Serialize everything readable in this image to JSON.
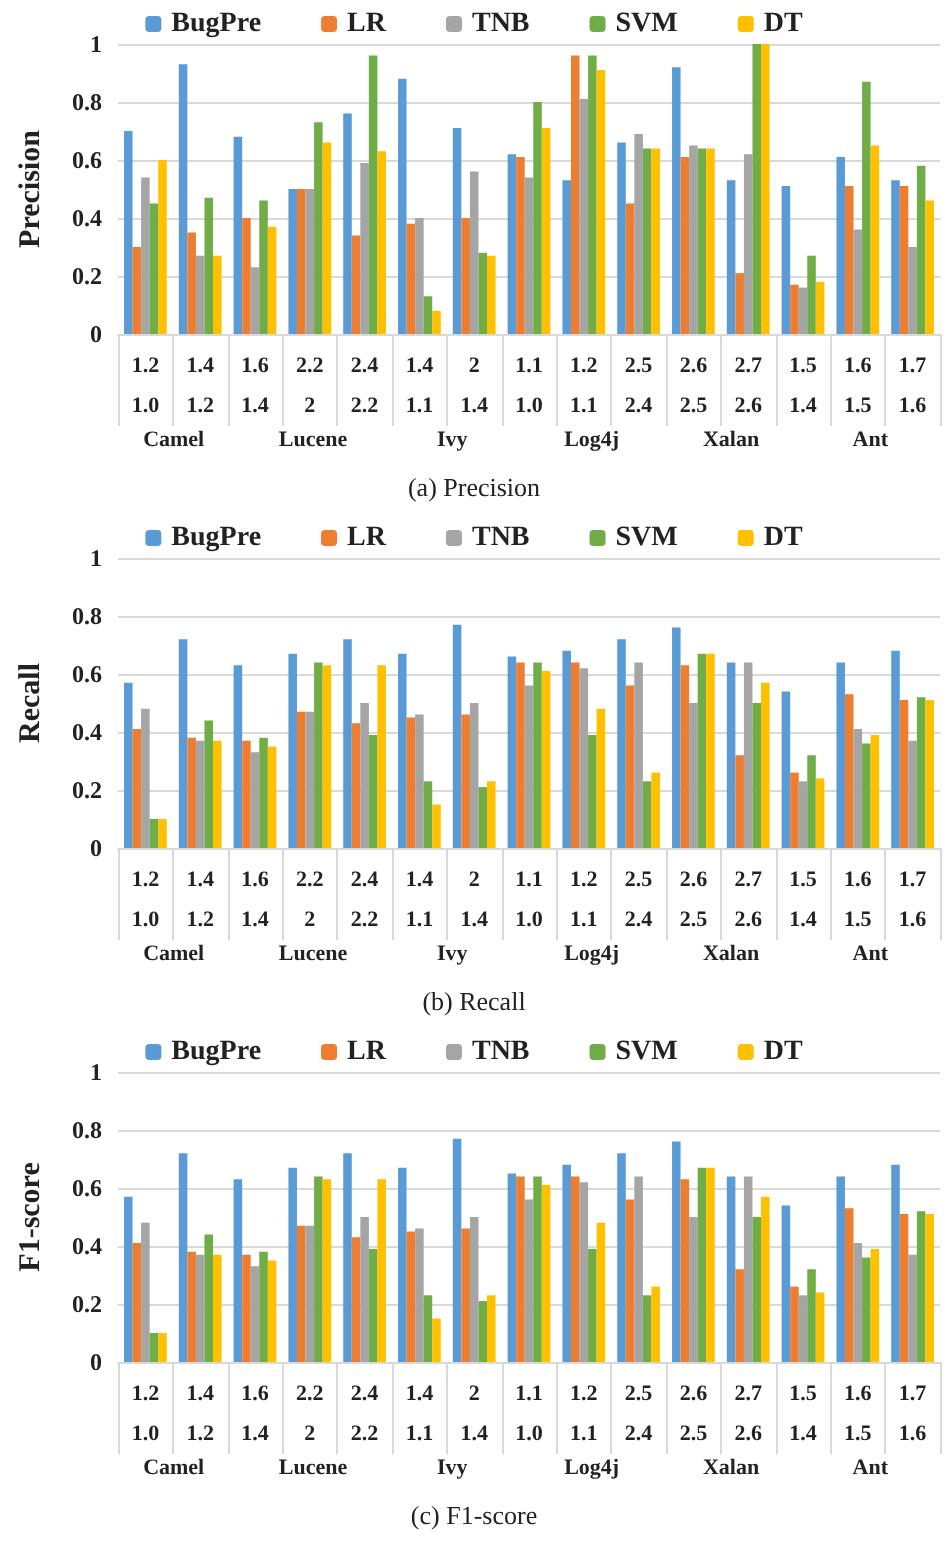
{
  "chart_data": [
    {
      "type": "bar",
      "title": "(a) Precision",
      "ylabel": "Precision",
      "categories": [
        "1.2\n1.0",
        "1.4\n1.2",
        "1.6\n1.4",
        "2.2\n2",
        "2.4\n2.2",
        "1.4\n1.1",
        "2\n1.4",
        "1.1\n1.0",
        "1.2\n1.1",
        "2.5\n2.4",
        "2.6\n2.5",
        "2.7\n2.6",
        "1.5\n1.4",
        "1.6\n1.5",
        "1.7\n1.6"
      ],
      "annotations": [
        "Camel",
        "Lucene",
        "Ivy",
        "Log4j",
        "Xalan",
        "Ant"
      ],
      "ylim": [
        0,
        1
      ],
      "yticks": [
        0,
        0.2,
        0.4,
        0.6,
        0.8,
        1
      ],
      "grid": "y",
      "legend": "top",
      "series": [
        {
          "name": "BugPre",
          "color": "#5b9bd5",
          "values": [
            0.7,
            0.93,
            0.68,
            0.5,
            0.76,
            0.88,
            0.71,
            0.62,
            0.53,
            0.66,
            0.92,
            0.53,
            0.51,
            0.61,
            0.53
          ]
        },
        {
          "name": "LR",
          "color": "#ed7d31",
          "values": [
            0.3,
            0.35,
            0.4,
            0.5,
            0.34,
            0.38,
            0.4,
            0.61,
            0.96,
            0.45,
            0.61,
            0.21,
            0.17,
            0.51,
            0.51
          ]
        },
        {
          "name": "TNB",
          "color": "#a5a5a5",
          "values": [
            0.54,
            0.27,
            0.23,
            0.5,
            0.59,
            0.4,
            0.56,
            0.54,
            0.81,
            0.69,
            0.65,
            0.62,
            0.16,
            0.36,
            0.3
          ]
        },
        {
          "name": "SVM",
          "color": "#70ad47",
          "values": [
            0.45,
            0.47,
            0.46,
            0.73,
            0.96,
            0.13,
            0.28,
            0.8,
            0.96,
            0.64,
            0.64,
            1.0,
            0.27,
            0.87,
            0.58
          ]
        },
        {
          "name": "DT",
          "color": "#ffc000",
          "values": [
            0.6,
            0.27,
            0.37,
            0.66,
            0.63,
            0.08,
            0.27,
            0.71,
            0.91,
            0.64,
            0.64,
            1.0,
            0.18,
            0.65,
            0.46
          ]
        }
      ]
    },
    {
      "type": "bar",
      "title": "(b) Recall",
      "ylabel": "Recall",
      "categories": [
        "1.2\n1.0",
        "1.4\n1.2",
        "1.6\n1.4",
        "2.2\n2",
        "2.4\n2.2",
        "1.4\n1.1",
        "2\n1.4",
        "1.1\n1.0",
        "1.2\n1.1",
        "2.5\n2.4",
        "2.6\n2.5",
        "2.7\n2.6",
        "1.5\n1.4",
        "1.6\n1.5",
        "1.7\n1.6"
      ],
      "annotations": [
        "Camel",
        "Lucene",
        "Ivy",
        "Log4j",
        "Xalan",
        "Ant"
      ],
      "ylim": [
        0,
        1
      ],
      "yticks": [
        0,
        0.2,
        0.4,
        0.6,
        0.8,
        1
      ],
      "grid": "y",
      "legend": "top",
      "series": [
        {
          "name": "BugPre",
          "color": "#5b9bd5",
          "values": [
            0.57,
            0.72,
            0.63,
            0.67,
            0.72,
            0.67,
            0.77,
            0.66,
            0.68,
            0.72,
            0.76,
            0.64,
            0.54,
            0.64,
            0.68
          ]
        },
        {
          "name": "LR",
          "color": "#ed7d31",
          "values": [
            0.41,
            0.38,
            0.37,
            0.47,
            0.43,
            0.45,
            0.46,
            0.64,
            0.64,
            0.56,
            0.63,
            0.32,
            0.26,
            0.53,
            0.51
          ]
        },
        {
          "name": "TNB",
          "color": "#a5a5a5",
          "values": [
            0.48,
            0.37,
            0.33,
            0.47,
            0.5,
            0.46,
            0.5,
            0.56,
            0.62,
            0.64,
            0.5,
            0.64,
            0.23,
            0.41,
            0.37
          ]
        },
        {
          "name": "SVM",
          "color": "#70ad47",
          "values": [
            0.1,
            0.44,
            0.38,
            0.64,
            0.39,
            0.23,
            0.21,
            0.64,
            0.39,
            0.23,
            0.67,
            0.5,
            0.32,
            0.36,
            0.52
          ]
        },
        {
          "name": "DT",
          "color": "#ffc000",
          "values": [
            0.1,
            0.37,
            0.35,
            0.63,
            0.63,
            0.15,
            0.23,
            0.61,
            0.48,
            0.26,
            0.67,
            0.57,
            0.24,
            0.39,
            0.51
          ]
        }
      ]
    },
    {
      "type": "bar",
      "title": "(c) F1-score",
      "ylabel": "F1-score",
      "categories": [
        "1.2\n1.0",
        "1.4\n1.2",
        "1.6\n1.4",
        "2.2\n2",
        "2.4\n2.2",
        "1.4\n1.1",
        "2\n1.4",
        "1.1\n1.0",
        "1.2\n1.1",
        "2.5\n2.4",
        "2.6\n2.5",
        "2.7\n2.6",
        "1.5\n1.4",
        "1.6\n1.5",
        "1.7\n1.6"
      ],
      "annotations": [
        "Camel",
        "Lucene",
        "Ivy",
        "Log4j",
        "Xalan",
        "Ant"
      ],
      "ylim": [
        0,
        1
      ],
      "yticks": [
        0,
        0.2,
        0.4,
        0.6,
        0.8,
        1
      ],
      "grid": "y",
      "legend": "top",
      "series": [
        {
          "name": "BugPre",
          "color": "#5b9bd5",
          "values": [
            0.57,
            0.72,
            0.63,
            0.67,
            0.72,
            0.67,
            0.77,
            0.65,
            0.68,
            0.72,
            0.76,
            0.64,
            0.54,
            0.64,
            0.68
          ]
        },
        {
          "name": "LR",
          "color": "#ed7d31",
          "values": [
            0.41,
            0.38,
            0.37,
            0.47,
            0.43,
            0.45,
            0.46,
            0.64,
            0.64,
            0.56,
            0.63,
            0.32,
            0.26,
            0.53,
            0.51
          ]
        },
        {
          "name": "TNB",
          "color": "#a5a5a5",
          "values": [
            0.48,
            0.37,
            0.33,
            0.47,
            0.5,
            0.46,
            0.5,
            0.56,
            0.62,
            0.64,
            0.5,
            0.64,
            0.23,
            0.41,
            0.37
          ]
        },
        {
          "name": "SVM",
          "color": "#70ad47",
          "values": [
            0.1,
            0.44,
            0.38,
            0.64,
            0.39,
            0.23,
            0.21,
            0.64,
            0.39,
            0.23,
            0.67,
            0.5,
            0.32,
            0.36,
            0.52
          ]
        },
        {
          "name": "DT",
          "color": "#ffc000",
          "values": [
            0.1,
            0.37,
            0.35,
            0.63,
            0.63,
            0.15,
            0.23,
            0.61,
            0.48,
            0.26,
            0.67,
            0.57,
            0.24,
            0.39,
            0.51
          ]
        }
      ]
    }
  ]
}
